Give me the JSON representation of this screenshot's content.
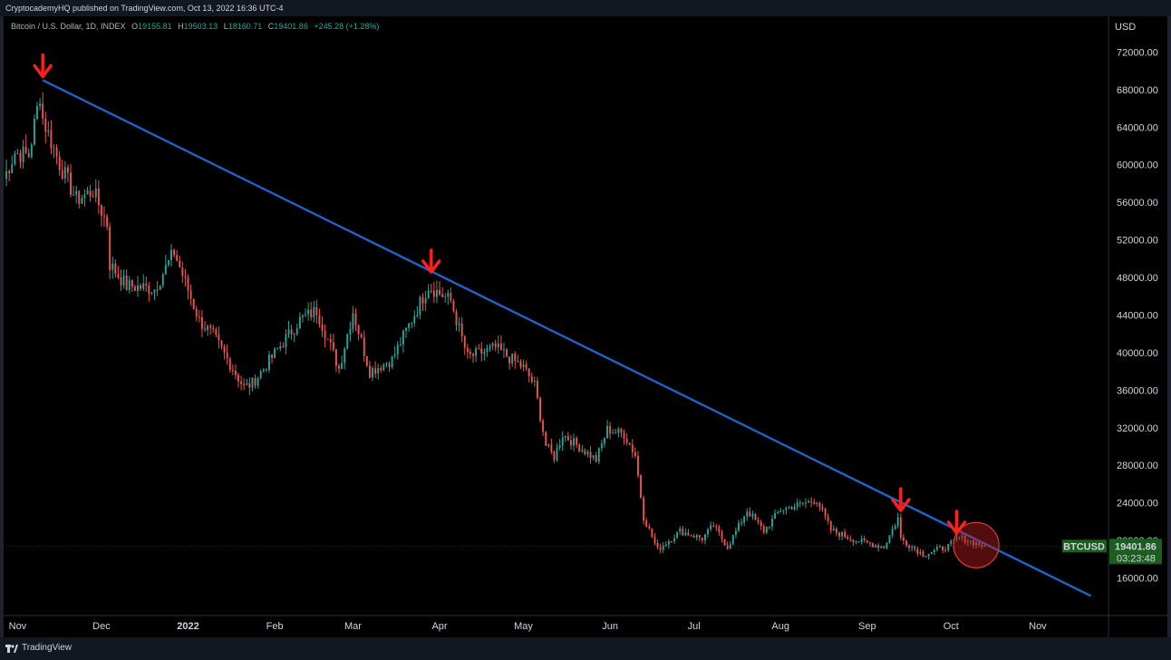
{
  "header": {
    "published": "CryptocademyHQ published on TradingView.com, Oct 13, 2022 16:36 UTC-4"
  },
  "legend": {
    "symbol": "Bitcoin / U.S. Dollar, 1D, INDEX",
    "o_label": "O",
    "o_value": "19155.81",
    "h_label": "H",
    "h_value": "19503.13",
    "l_label": "L",
    "l_value": "18160.71",
    "c_label": "C",
    "c_value": "19401.86",
    "change": "+245.28 (+1.28%)"
  },
  "footer": {
    "brand": "TradingView"
  },
  "colors": {
    "up": "#26a69a",
    "down": "#ef5350",
    "trendline": "#1e64c8",
    "arrow": "#ff1f1f",
    "circle": "#b71c1c",
    "price_badge": "#1b5e20"
  },
  "chart_data": {
    "type": "candlestick",
    "currency_label": "USD",
    "ylim": [
      12000,
      75800
    ],
    "y_ticks": [
      16000,
      20000,
      24000,
      28000,
      32000,
      36000,
      40000,
      44000,
      48000,
      52000,
      56000,
      60000,
      64000,
      68000,
      72000
    ],
    "y_tick_labels": [
      "16000.00",
      "20000.00",
      "24000.00",
      "28000.00",
      "32000.00",
      "36000.00",
      "40000.00",
      "44000.00",
      "48000.00",
      "52000.00",
      "56000.00",
      "60000.00",
      "64000.00",
      "68000.00",
      "72000.00"
    ],
    "x_range": [
      "2021-10-27",
      "2022-11-26"
    ],
    "x_ticks": [
      {
        "date": "2021-11-01",
        "label": "Nov",
        "bold": false
      },
      {
        "date": "2021-12-01",
        "label": "Dec",
        "bold": false
      },
      {
        "date": "2022-01-01",
        "label": "2022",
        "bold": true
      },
      {
        "date": "2022-02-01",
        "label": "Feb",
        "bold": false
      },
      {
        "date": "2022-03-01",
        "label": "Mar",
        "bold": false
      },
      {
        "date": "2022-04-01",
        "label": "Apr",
        "bold": false
      },
      {
        "date": "2022-05-01",
        "label": "May",
        "bold": false
      },
      {
        "date": "2022-06-01",
        "label": "Jun",
        "bold": false
      },
      {
        "date": "2022-07-01",
        "label": "Jul",
        "bold": false
      },
      {
        "date": "2022-08-01",
        "label": "Aug",
        "bold": false
      },
      {
        "date": "2022-09-01",
        "label": "Sep",
        "bold": false
      },
      {
        "date": "2022-10-01",
        "label": "Oct",
        "bold": false
      },
      {
        "date": "2022-11-01",
        "label": "Nov",
        "bold": false
      }
    ],
    "close_anchors": [
      [
        "2021-10-27",
        58500
      ],
      [
        "2021-10-31",
        61300
      ],
      [
        "2021-11-05",
        61000
      ],
      [
        "2021-11-09",
        67500
      ],
      [
        "2021-11-10",
        64900
      ],
      [
        "2021-11-16",
        60100
      ],
      [
        "2021-11-22",
        56300
      ],
      [
        "2021-11-28",
        57200
      ],
      [
        "2021-12-03",
        53700
      ],
      [
        "2021-12-04",
        49400
      ],
      [
        "2021-12-10",
        47100
      ],
      [
        "2021-12-20",
        46800
      ],
      [
        "2021-12-27",
        50700
      ],
      [
        "2022-01-05",
        43400
      ],
      [
        "2022-01-10",
        41800
      ],
      [
        "2022-01-21",
        36300
      ],
      [
        "2022-01-24",
        36700
      ],
      [
        "2022-02-05",
        41500
      ],
      [
        "2022-02-10",
        43500
      ],
      [
        "2022-02-16",
        44500
      ],
      [
        "2022-02-24",
        38300
      ],
      [
        "2022-03-01",
        44400
      ],
      [
        "2022-03-07",
        38000
      ],
      [
        "2022-03-15",
        39300
      ],
      [
        "2022-03-28",
        47100
      ],
      [
        "2022-04-05",
        45500
      ],
      [
        "2022-04-11",
        39500
      ],
      [
        "2022-04-21",
        40500
      ],
      [
        "2022-05-01",
        38400
      ],
      [
        "2022-05-05",
        36500
      ],
      [
        "2022-05-09",
        30100
      ],
      [
        "2022-05-12",
        28900
      ],
      [
        "2022-05-15",
        31300
      ],
      [
        "2022-05-27",
        28600
      ],
      [
        "2022-05-31",
        31800
      ],
      [
        "2022-06-06",
        31300
      ],
      [
        "2022-06-10",
        29100
      ],
      [
        "2022-06-13",
        22500
      ],
      [
        "2022-06-18",
        19000
      ],
      [
        "2022-06-26",
        21000
      ],
      [
        "2022-07-04",
        20200
      ],
      [
        "2022-07-08",
        21600
      ],
      [
        "2022-07-13",
        19300
      ],
      [
        "2022-07-20",
        23200
      ],
      [
        "2022-07-26",
        21000
      ],
      [
        "2022-08-01",
        23300
      ],
      [
        "2022-08-14",
        24300
      ],
      [
        "2022-08-19",
        21100
      ],
      [
        "2022-08-28",
        20000
      ],
      [
        "2022-09-07",
        19300
      ],
      [
        "2022-09-12",
        22400
      ],
      [
        "2022-09-13",
        20200
      ],
      [
        "2022-09-21",
        18500
      ],
      [
        "2022-09-30",
        19400
      ],
      [
        "2022-10-04",
        20300
      ],
      [
        "2022-10-13",
        19402
      ]
    ],
    "annotations": {
      "trendline": {
        "from": [
          "2021-11-10",
          69000
        ],
        "to": [
          "2022-11-20",
          14100
        ]
      },
      "arrows": [
        {
          "date": "2021-11-10",
          "price": 69000
        },
        {
          "date": "2022-03-29",
          "price": 48200
        },
        {
          "date": "2022-09-13",
          "price": 22800
        },
        {
          "date": "2022-10-03",
          "price": 20400
        }
      ],
      "circle": {
        "date": "2022-10-10",
        "price": 19500
      }
    },
    "last_price": {
      "symbol": "BTCUSD",
      "price": "19401.86",
      "countdown": "03:23:48",
      "value": 19401.86
    }
  }
}
